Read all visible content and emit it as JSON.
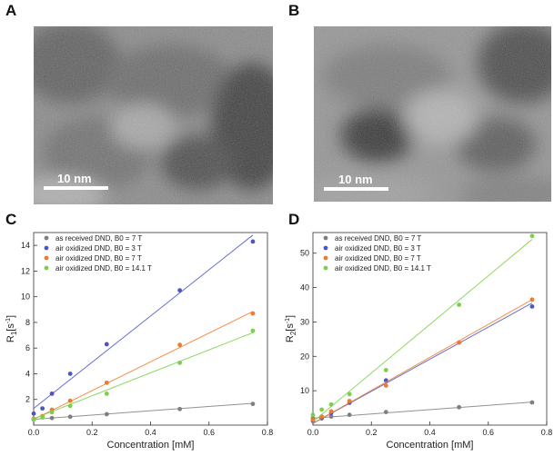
{
  "panels": {
    "a": {
      "letter": "A",
      "scale_label": "10 nm"
    },
    "b": {
      "letter": "B",
      "scale_label": "10 nm"
    },
    "c": {
      "letter": "C"
    },
    "d": {
      "letter": "D"
    }
  },
  "colors": {
    "as_received": "#7f7f7f",
    "air_3T": "#4a55c8",
    "air_7T": "#f07a2a",
    "air_14T": "#7ccf4a"
  },
  "chart_data": [
    {
      "id": "C",
      "type": "scatter",
      "xlabel": "Concentration [mM]",
      "ylabel": "R1[s-1]",
      "ylabel_main": "R",
      "ylabel_sub": "1",
      "ylabel_bracket": "[s",
      "ylabel_sup": "-1",
      "ylabel_close": "]",
      "xlim": [
        0,
        0.8
      ],
      "ylim": [
        0,
        15
      ],
      "xticks": [
        "0.0",
        "0.2",
        "0.4",
        "0.6",
        "0.8"
      ],
      "yticks": [
        "2",
        "4",
        "6",
        "8",
        "10",
        "12",
        "14"
      ],
      "ytick_values": [
        2,
        4,
        6,
        8,
        10,
        12,
        14
      ],
      "xtick_values": [
        0,
        0.2,
        0.4,
        0.6,
        0.8
      ],
      "legend_position": "top-left",
      "series": [
        {
          "name": "as received DND, B0 = 7 T",
          "color_key": "as_received",
          "x": [
            0.0,
            0.0625,
            0.125,
            0.25,
            0.5,
            0.75
          ],
          "y": [
            0.45,
            0.55,
            0.65,
            0.85,
            1.25,
            1.65
          ],
          "fit": [
            [
              0.0,
              0.45
            ],
            [
              0.75,
              1.7
            ]
          ]
        },
        {
          "name": "air oxidized DND, B0 = 3 T",
          "color_key": "air_3T",
          "x": [
            0.0,
            0.03,
            0.0625,
            0.125,
            0.25,
            0.5,
            0.75
          ],
          "y": [
            0.9,
            1.3,
            2.45,
            4.0,
            6.3,
            10.5,
            14.3
          ],
          "fit": [
            [
              0.0,
              1.3
            ],
            [
              0.75,
              14.8
            ]
          ]
        },
        {
          "name": "air oxidized DND, B0 = 7 T",
          "color_key": "air_7T",
          "x": [
            0.0,
            0.03,
            0.0625,
            0.125,
            0.25,
            0.5,
            0.75
          ],
          "y": [
            0.5,
            0.7,
            1.2,
            1.9,
            3.3,
            6.25,
            8.7
          ],
          "fit": [
            [
              0.0,
              0.45
            ],
            [
              0.75,
              8.85
            ]
          ]
        },
        {
          "name": "air oxidized DND, B0 = 14.1 T",
          "color_key": "air_14T",
          "x": [
            0.0,
            0.03,
            0.0625,
            0.125,
            0.25,
            0.5,
            0.75
          ],
          "y": [
            0.45,
            0.6,
            1.0,
            1.5,
            2.45,
            4.85,
            7.35
          ],
          "fit": [
            [
              0.0,
              0.5
            ],
            [
              0.75,
              7.2
            ]
          ]
        }
      ]
    },
    {
      "id": "D",
      "type": "scatter",
      "xlabel": "Concentration [mM]",
      "ylabel": "R2[s-1]",
      "ylabel_main": "R",
      "ylabel_sub": "2",
      "ylabel_bracket": "[s",
      "ylabel_sup": "-1",
      "ylabel_close": "]",
      "xlim": [
        0,
        0.8
      ],
      "ylim": [
        0,
        56
      ],
      "xticks": [
        "0.0",
        "0.2",
        "0.4",
        "0.6",
        "0.8"
      ],
      "yticks": [
        "10",
        "20",
        "30",
        "40",
        "50"
      ],
      "ytick_values": [
        10,
        20,
        30,
        40,
        50
      ],
      "xtick_values": [
        0,
        0.2,
        0.4,
        0.6,
        0.8
      ],
      "legend_position": "top-left",
      "series": [
        {
          "name": "as received DND, B0 = 7 T",
          "color_key": "as_received",
          "x": [
            0.0,
            0.0625,
            0.125,
            0.25,
            0.5,
            0.75
          ],
          "y": [
            2.0,
            2.5,
            3.0,
            3.8,
            5.2,
            6.6
          ],
          "fit": [
            [
              0.0,
              2.0
            ],
            [
              0.75,
              6.7
            ]
          ]
        },
        {
          "name": "air oxidized DND, B0 = 3 T",
          "color_key": "air_3T",
          "x": [
            0.0,
            0.03,
            0.0625,
            0.125,
            0.25,
            0.5,
            0.75
          ],
          "y": [
            1.2,
            2.0,
            3.5,
            6.5,
            13.0,
            24.0,
            34.5
          ],
          "fit": [
            [
              0.0,
              0.5
            ],
            [
              0.75,
              35.5
            ]
          ]
        },
        {
          "name": "air oxidized DND, B0 = 7 T",
          "color_key": "air_7T",
          "x": [
            0.0,
            0.03,
            0.0625,
            0.125,
            0.25,
            0.5,
            0.75
          ],
          "y": [
            1.5,
            2.5,
            4.0,
            7.0,
            11.5,
            24.0,
            36.5
          ],
          "fit": [
            [
              0.0,
              0.5
            ],
            [
              0.75,
              36.5
            ]
          ]
        },
        {
          "name": "air oxidized DND, B0 = 14.1 T",
          "color_key": "air_14T",
          "x": [
            0.0,
            0.03,
            0.0625,
            0.125,
            0.25,
            0.5,
            0.75
          ],
          "y": [
            3.0,
            4.5,
            6.0,
            9.0,
            16.0,
            35.0,
            55.0
          ],
          "fit": [
            [
              0.0,
              1.0
            ],
            [
              0.75,
              54.0
            ]
          ]
        }
      ]
    }
  ]
}
